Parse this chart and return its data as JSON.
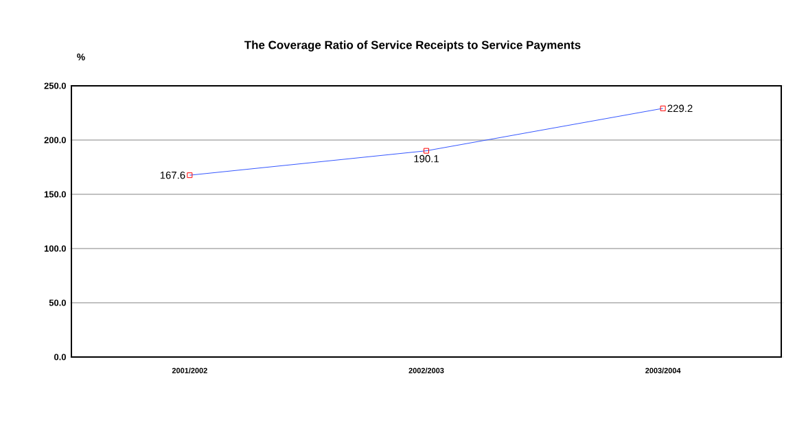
{
  "chart_data": {
    "type": "line",
    "title": "The Coverage Ratio of Service Receipts to Service Payments",
    "ylabel": "%",
    "categories": [
      "2001/2002",
      "2002/2003",
      "2003/2004"
    ],
    "series": [
      {
        "color": "#3355ff",
        "values": [
          167.6,
          190.1,
          229.2
        ]
      }
    ],
    "marker": "square",
    "line_style": "solid",
    "data_labels": true,
    "grid": "y",
    "ylim": [
      0,
      250
    ],
    "yticks": [
      {
        "value": 0,
        "label": "0.0"
      },
      {
        "value": 50,
        "label": "50.0"
      },
      {
        "value": 100,
        "label": "100.0"
      },
      {
        "value": 150,
        "label": "150.0"
      },
      {
        "value": 200,
        "label": "200.0"
      },
      {
        "value": 250,
        "label": "250.0"
      }
    ]
  }
}
